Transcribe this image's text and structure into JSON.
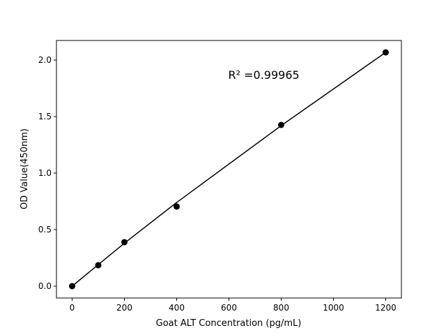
{
  "chart_data": {
    "type": "scatter",
    "title": "",
    "xlabel": "Goat ALT Concentration (pg/mL)",
    "ylabel": "OD Value(450nm)",
    "xlim": [
      -60,
      1260
    ],
    "ylim": [
      -0.105,
      2.173
    ],
    "xticks": [
      0,
      200,
      400,
      600,
      800,
      1000,
      1200
    ],
    "yticks": [
      0.0,
      0.5,
      1.0,
      1.5,
      2.0
    ],
    "ytick_labels": [
      "0.0",
      "0.5",
      "1.0",
      "1.5",
      "2.0"
    ],
    "grid": false,
    "points": {
      "x": [
        0,
        100,
        200,
        400,
        800,
        1200
      ],
      "y": [
        0.0,
        0.185,
        0.389,
        0.704,
        1.426,
        2.068
      ]
    },
    "fit_curve": {
      "x": [
        0,
        100,
        200,
        400,
        800,
        1200
      ],
      "y": [
        0.0,
        0.19,
        0.38,
        0.74,
        1.42,
        2.068
      ]
    },
    "annotation": "R² =0.99965",
    "annotation_position": {
      "x": 600,
      "y": 1.87
    },
    "color": "#000000"
  }
}
